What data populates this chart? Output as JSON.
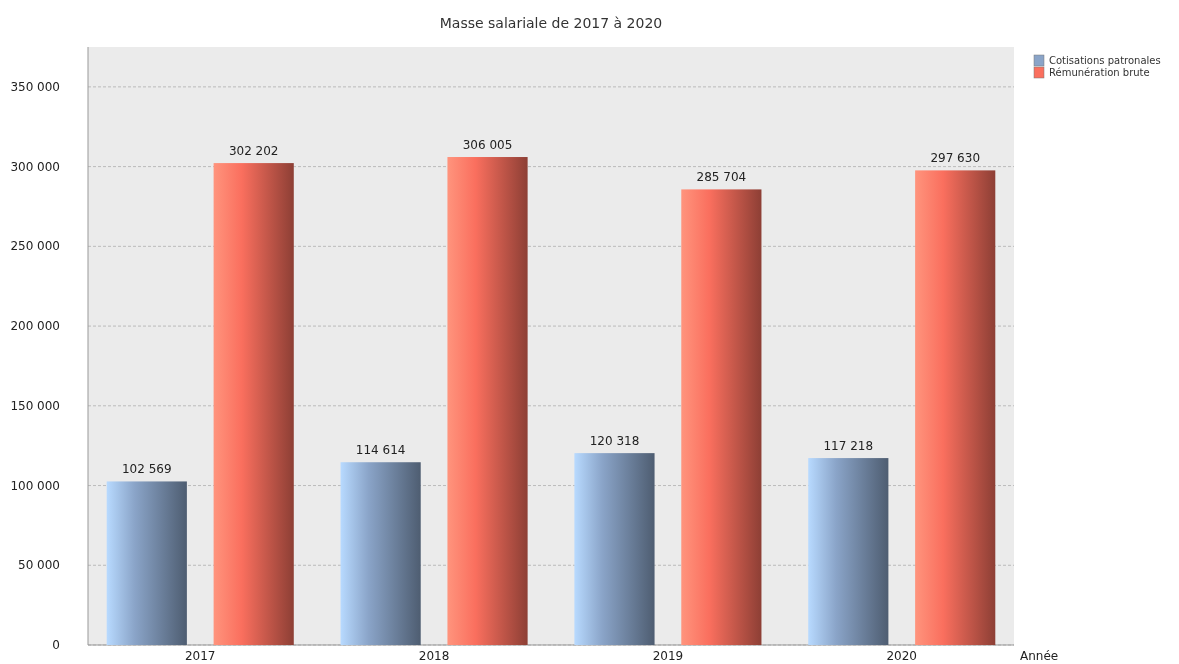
{
  "chart_data": {
    "type": "bar",
    "title": "Masse salariale de 2017 à 2020",
    "xlabel": "Année",
    "categories": [
      "2017",
      "2018",
      "2019",
      "2020"
    ],
    "series": [
      {
        "name": "Cotisations patronales",
        "color": "#8aa4c8",
        "values": [
          102569,
          114614,
          120318,
          117218
        ],
        "value_labels": [
          "102 569",
          "114 614",
          "120 318",
          "117 218"
        ]
      },
      {
        "name": "Rémunération brute",
        "color": "#fa6f5e",
        "values": [
          302202,
          306005,
          285704,
          297630
        ],
        "value_labels": [
          "302 202",
          "306 005",
          "285 704",
          "297 630"
        ]
      }
    ],
    "ylim": [
      0,
      375000
    ],
    "yticks": [
      {
        "value": 0,
        "label": "0"
      },
      {
        "value": 50000,
        "label": "50 000"
      },
      {
        "value": 100000,
        "label": "100 000"
      },
      {
        "value": 150000,
        "label": "150 000"
      },
      {
        "value": 200000,
        "label": "200 000"
      },
      {
        "value": 250000,
        "label": "250 000"
      },
      {
        "value": 300000,
        "label": "300 000"
      },
      {
        "value": 350000,
        "label": "350 000"
      }
    ],
    "grid": "y",
    "legend": "top right"
  }
}
